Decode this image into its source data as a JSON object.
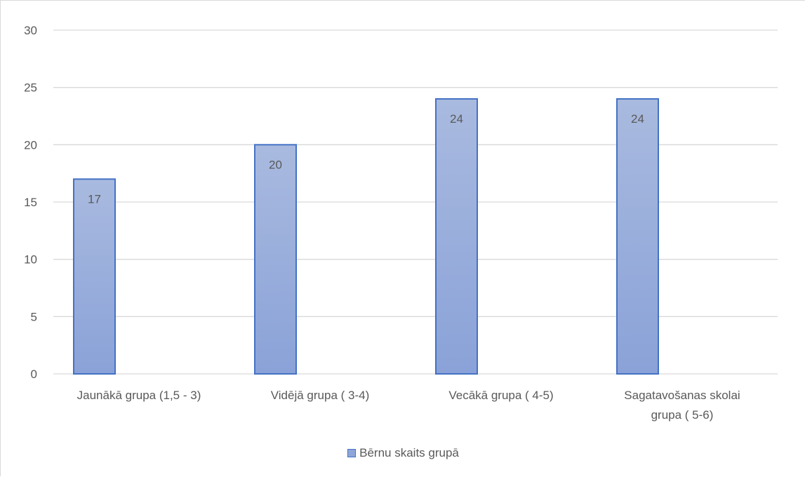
{
  "chart_data": {
    "type": "bar",
    "categories": [
      [
        "Jaunākā grupa (1,5 - 3)"
      ],
      [
        "Vidējā grupa ( 3-4)"
      ],
      [
        "Vecākā grupa ( 4-5)"
      ],
      [
        "Sagatavošanas skolai",
        "grupa ( 5-6)"
      ]
    ],
    "series": [
      {
        "name": "Bērnu skaits grupā",
        "values": [
          17,
          20,
          24,
          24
        ]
      }
    ],
    "ylim": [
      0,
      30
    ],
    "yticks": [
      0,
      5,
      10,
      15,
      20,
      25,
      30
    ],
    "grid": true,
    "legend_position": "bottom",
    "colors": {
      "bar_top": "#a9badf",
      "bar_bottom": "#8aa2d8",
      "bar_border": "#4472c4",
      "grid": "#d9d9d9",
      "text": "#595959"
    }
  }
}
